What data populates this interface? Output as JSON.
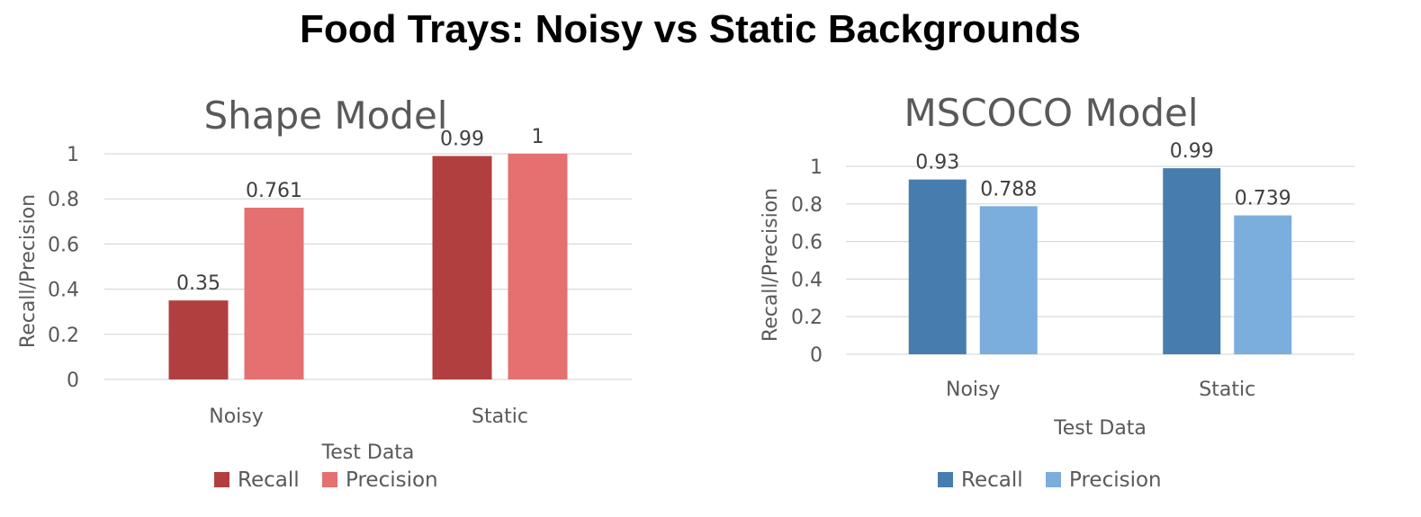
{
  "page_title": "Food Trays: Noisy vs Static Backgrounds",
  "chart_data": [
    {
      "type": "bar",
      "title": "Shape Model",
      "xlabel": "Test Data",
      "ylabel": "Recall/Precision",
      "categories": [
        "Noisy",
        "Static"
      ],
      "ylim": [
        0,
        1
      ],
      "yticks": [
        "0",
        "0.2",
        "0.4",
        "0.6",
        "0.8",
        "1"
      ],
      "grid": true,
      "legend_position": "bottom",
      "series": [
        {
          "name": "Recall",
          "color": "#B23F3F",
          "values": [
            0.35,
            0.99
          ],
          "labels": [
            "0.35",
            "0.99"
          ]
        },
        {
          "name": "Precision",
          "color": "#E4706F",
          "values": [
            0.761,
            1
          ],
          "labels": [
            "0.761",
            "1"
          ]
        }
      ]
    },
    {
      "type": "bar",
      "title": "MSCOCO Model",
      "xlabel": "Test Data",
      "ylabel": "Recall/Precision",
      "categories": [
        "Noisy",
        "Static"
      ],
      "ylim": [
        0,
        1
      ],
      "yticks": [
        "0",
        "0.2",
        "0.4",
        "0.6",
        "0.8",
        "1"
      ],
      "grid": true,
      "legend_position": "bottom",
      "series": [
        {
          "name": "Recall",
          "color": "#467DAE",
          "values": [
            0.93,
            0.99
          ],
          "labels": [
            "0.93",
            "0.99"
          ]
        },
        {
          "name": "Precision",
          "color": "#7BAEDD",
          "values": [
            0.788,
            0.739
          ],
          "labels": [
            "0.788",
            "0.739"
          ]
        }
      ]
    }
  ]
}
